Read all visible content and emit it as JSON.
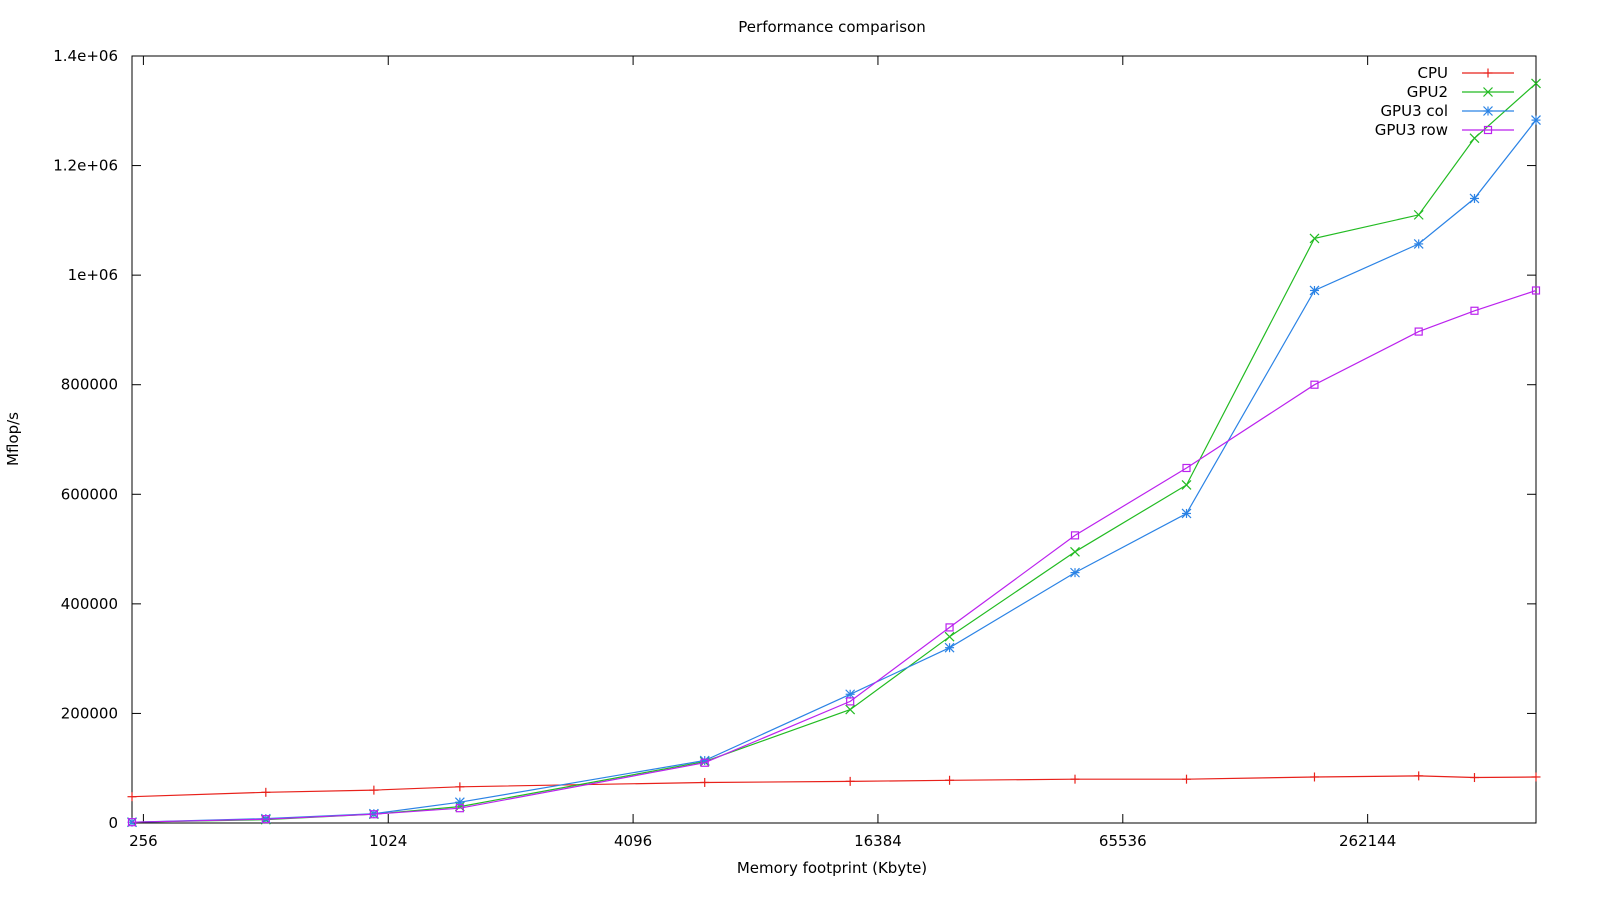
{
  "chart_data": {
    "type": "line",
    "title": "Performance comparison",
    "xlabel": "Memory footprint (Kbyte)",
    "ylabel": "Mflop/s",
    "x_scale": "log2",
    "xlim": [
      240,
      680000
    ],
    "ylim": [
      0,
      1400000
    ],
    "x_ticks": [
      256,
      1024,
      4096,
      16384,
      65536,
      262144
    ],
    "x_tick_labels": [
      "256",
      "1024",
      "4096",
      "16384",
      "65536",
      "262144"
    ],
    "y_ticks": [
      0,
      200000,
      400000,
      600000,
      800000,
      1000000,
      1200000,
      1400000
    ],
    "y_tick_labels": [
      "0",
      "200000",
      "400000",
      "600000",
      "800000",
      "1e+06",
      "1.2e+06",
      "1.4e+06"
    ],
    "grid": false,
    "legend_position": "top-right",
    "x": [
      240,
      512,
      944,
      1536,
      6144,
      14000,
      24576,
      50000,
      94000,
      194000,
      350000,
      480000,
      680000
    ],
    "series": [
      {
        "name": "CPU",
        "color": "#e8211b",
        "marker": "plus",
        "values": [
          48000,
          56000,
          60000,
          66000,
          74000,
          76000,
          78000,
          80000,
          80000,
          84000,
          86000,
          83000,
          84000
        ]
      },
      {
        "name": "GPU2",
        "color": "#22bb22",
        "marker": "cross",
        "values": [
          1500,
          6000,
          16000,
          30000,
          112000,
          207000,
          340000,
          495000,
          617000,
          1067000,
          1110000,
          1250000,
          1350000
        ]
      },
      {
        "name": "GPU3 col",
        "color": "#2b83e5",
        "marker": "star",
        "values": [
          1500,
          8000,
          17000,
          38000,
          114000,
          235000,
          320000,
          457000,
          565000,
          972000,
          1057000,
          1140000,
          1283000
        ]
      },
      {
        "name": "GPU3 row",
        "color": "#bb22ee",
        "marker": "box",
        "values": [
          1500,
          7000,
          16000,
          27000,
          110000,
          222000,
          357000,
          525000,
          648000,
          800000,
          897000,
          935000,
          972000
        ]
      }
    ]
  }
}
